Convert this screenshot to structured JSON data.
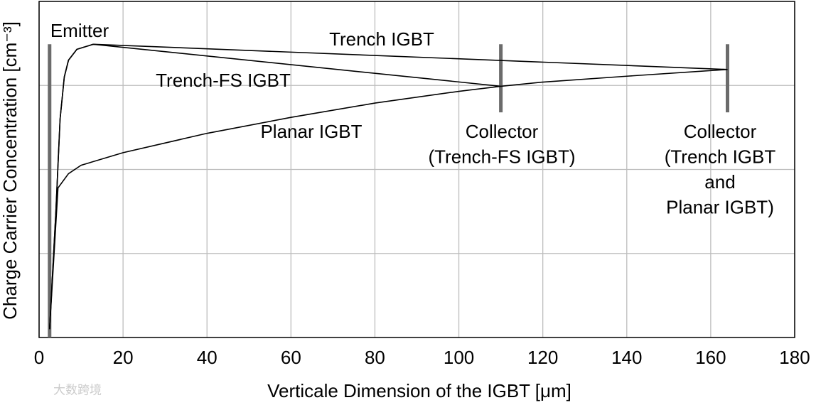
{
  "chart_data": {
    "type": "line",
    "x_label": "Verticale Dimension of the IGBT [μm]",
    "y_label": "Charge Carrier Concentration [cm⁻³]",
    "xlim": [
      0,
      180
    ],
    "xticks": [
      0,
      20,
      40,
      60,
      80,
      100,
      120,
      140,
      160,
      180
    ],
    "ylim": [
      0,
      4
    ],
    "ygrid": [
      1,
      2,
      3
    ],
    "grid": true,
    "series": [
      {
        "name": "Trench IGBT",
        "color": "#000000",
        "x": [
          2.5,
          4,
          5,
          6,
          7,
          9,
          12.9,
          164
        ],
        "values": [
          0.1,
          1.5,
          2.6,
          3.1,
          3.3,
          3.43,
          3.49,
          3.19
        ]
      },
      {
        "name": "Trench-FS IGBT",
        "color": "#000000",
        "x": [
          2.5,
          4,
          5,
          6,
          7,
          9,
          12.9,
          110
        ],
        "values": [
          0.1,
          1.5,
          2.6,
          3.1,
          3.3,
          3.43,
          3.49,
          2.99
        ]
      },
      {
        "name": "Planar IGBT",
        "color": "#000000",
        "x": [
          2.5,
          4.5,
          7,
          10,
          20,
          40,
          60,
          80,
          100,
          110,
          120,
          140,
          164
        ],
        "values": [
          0.1,
          1.78,
          1.95,
          2.05,
          2.2,
          2.43,
          2.62,
          2.79,
          2.93,
          2.99,
          3.04,
          3.11,
          3.19
        ]
      }
    ],
    "markers": [
      {
        "x": 2.5,
        "range": [
          0,
          3.49
        ],
        "color": "#6b6b6b"
      },
      {
        "x": 110,
        "range": [
          2.68,
          3.49
        ],
        "color": "#6b6b6b"
      },
      {
        "x": 164,
        "range": [
          2.68,
          3.49
        ],
        "color": "#6b6b6b"
      }
    ],
    "annotations": [
      {
        "lines": [
          "Emitter"
        ]
      },
      {
        "lines": [
          "Trench IGBT"
        ]
      },
      {
        "lines": [
          "Trench-FS IGBT"
        ]
      },
      {
        "lines": [
          "Planar IGBT"
        ]
      },
      {
        "lines": [
          "Collector",
          "(Trench-FS IGBT)"
        ]
      },
      {
        "lines": [
          "Collector",
          "(Trench IGBT",
          "and",
          "Planar IGBT)"
        ]
      }
    ],
    "watermark": "大数跨境"
  }
}
